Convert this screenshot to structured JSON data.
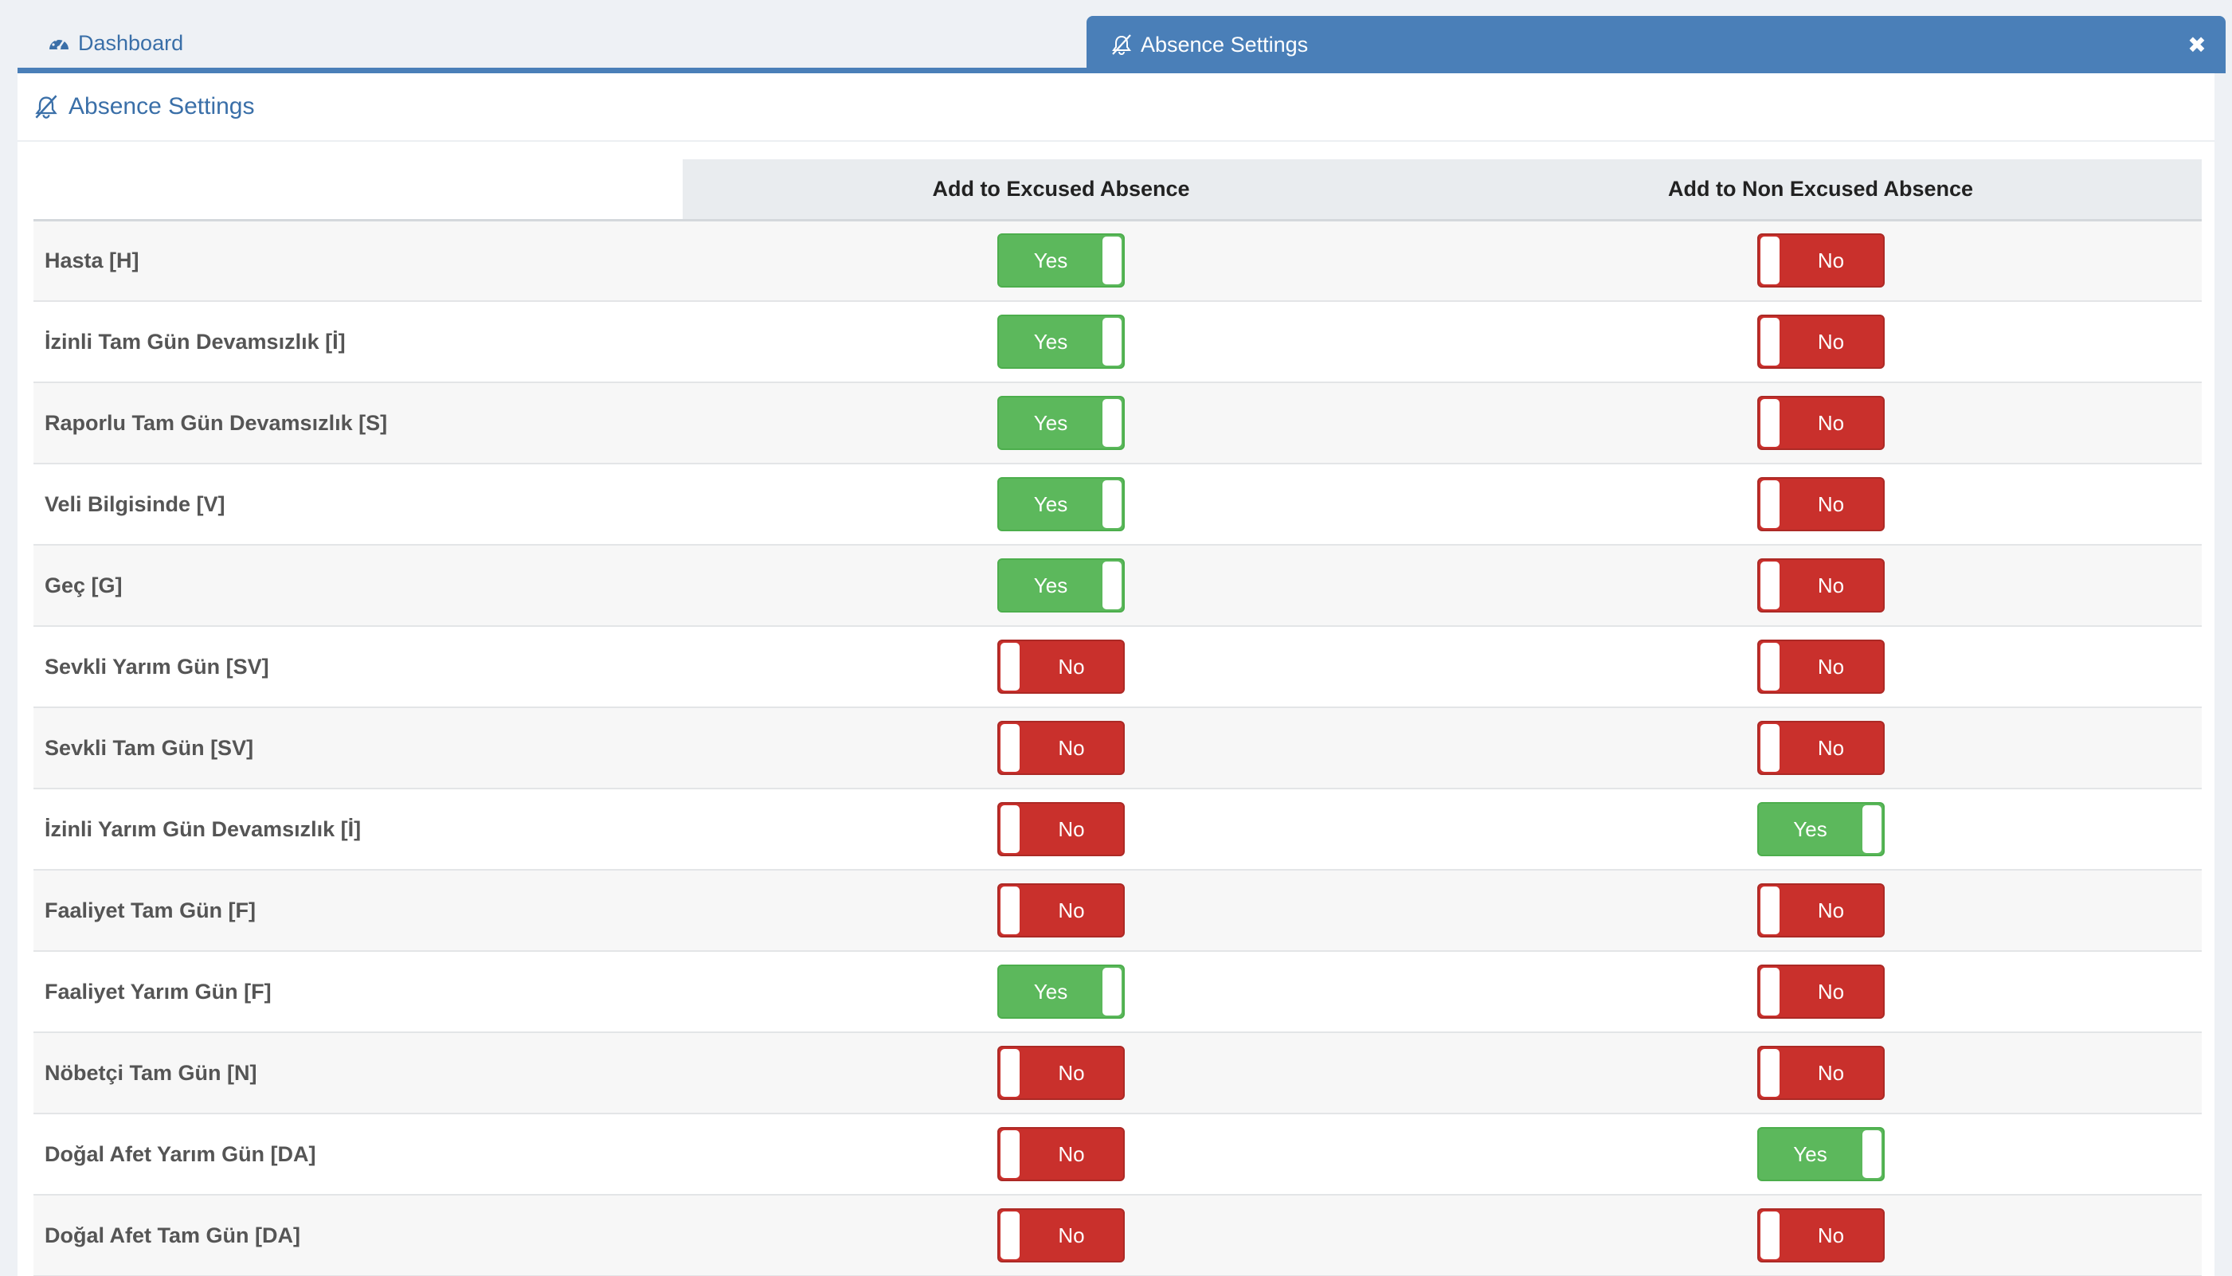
{
  "tabs": {
    "dashboard_label": "Dashboard",
    "active_label": "Absence Settings",
    "close_symbol": "✖"
  },
  "panel": {
    "title": "Absence Settings"
  },
  "table": {
    "columns": [
      "Add to Excused Absence",
      "Add to Non Excused Absence"
    ],
    "rows": [
      {
        "label": "Hasta [H]",
        "excused": "Yes",
        "non_excused": "No"
      },
      {
        "label": "İzinli Tam Gün Devamsızlık [İ]",
        "excused": "Yes",
        "non_excused": "No"
      },
      {
        "label": "Raporlu Tam Gün Devamsızlık [S]",
        "excused": "Yes",
        "non_excused": "No"
      },
      {
        "label": "Veli Bilgisinde [V]",
        "excused": "Yes",
        "non_excused": "No"
      },
      {
        "label": "Geç [G]",
        "excused": "Yes",
        "non_excused": "No"
      },
      {
        "label": "Sevkli Yarım Gün [SV]",
        "excused": "No",
        "non_excused": "No"
      },
      {
        "label": "Sevkli Tam Gün [SV]",
        "excused": "No",
        "non_excused": "No"
      },
      {
        "label": "İzinli Yarım Gün Devamsızlık [İ]",
        "excused": "No",
        "non_excused": "Yes"
      },
      {
        "label": "Faaliyet Tam Gün [F]",
        "excused": "No",
        "non_excused": "No"
      },
      {
        "label": "Faaliyet Yarım Gün [F]",
        "excused": "Yes",
        "non_excused": "No"
      },
      {
        "label": "Nöbetçi Tam Gün [N]",
        "excused": "No",
        "non_excused": "No"
      },
      {
        "label": "Doğal Afet Yarım Gün [DA]",
        "excused": "No",
        "non_excused": "Yes"
      },
      {
        "label": "Doğal Afet Tam Gün [DA]",
        "excused": "No",
        "non_excused": "No"
      }
    ]
  },
  "icons": {
    "dashboard": "dashboard-icon",
    "absence": "bell-slash-icon",
    "close": "close-icon"
  },
  "colors": {
    "accent": "#4a7fb8",
    "yes": "#5cb85c",
    "no": "#c9302c"
  }
}
